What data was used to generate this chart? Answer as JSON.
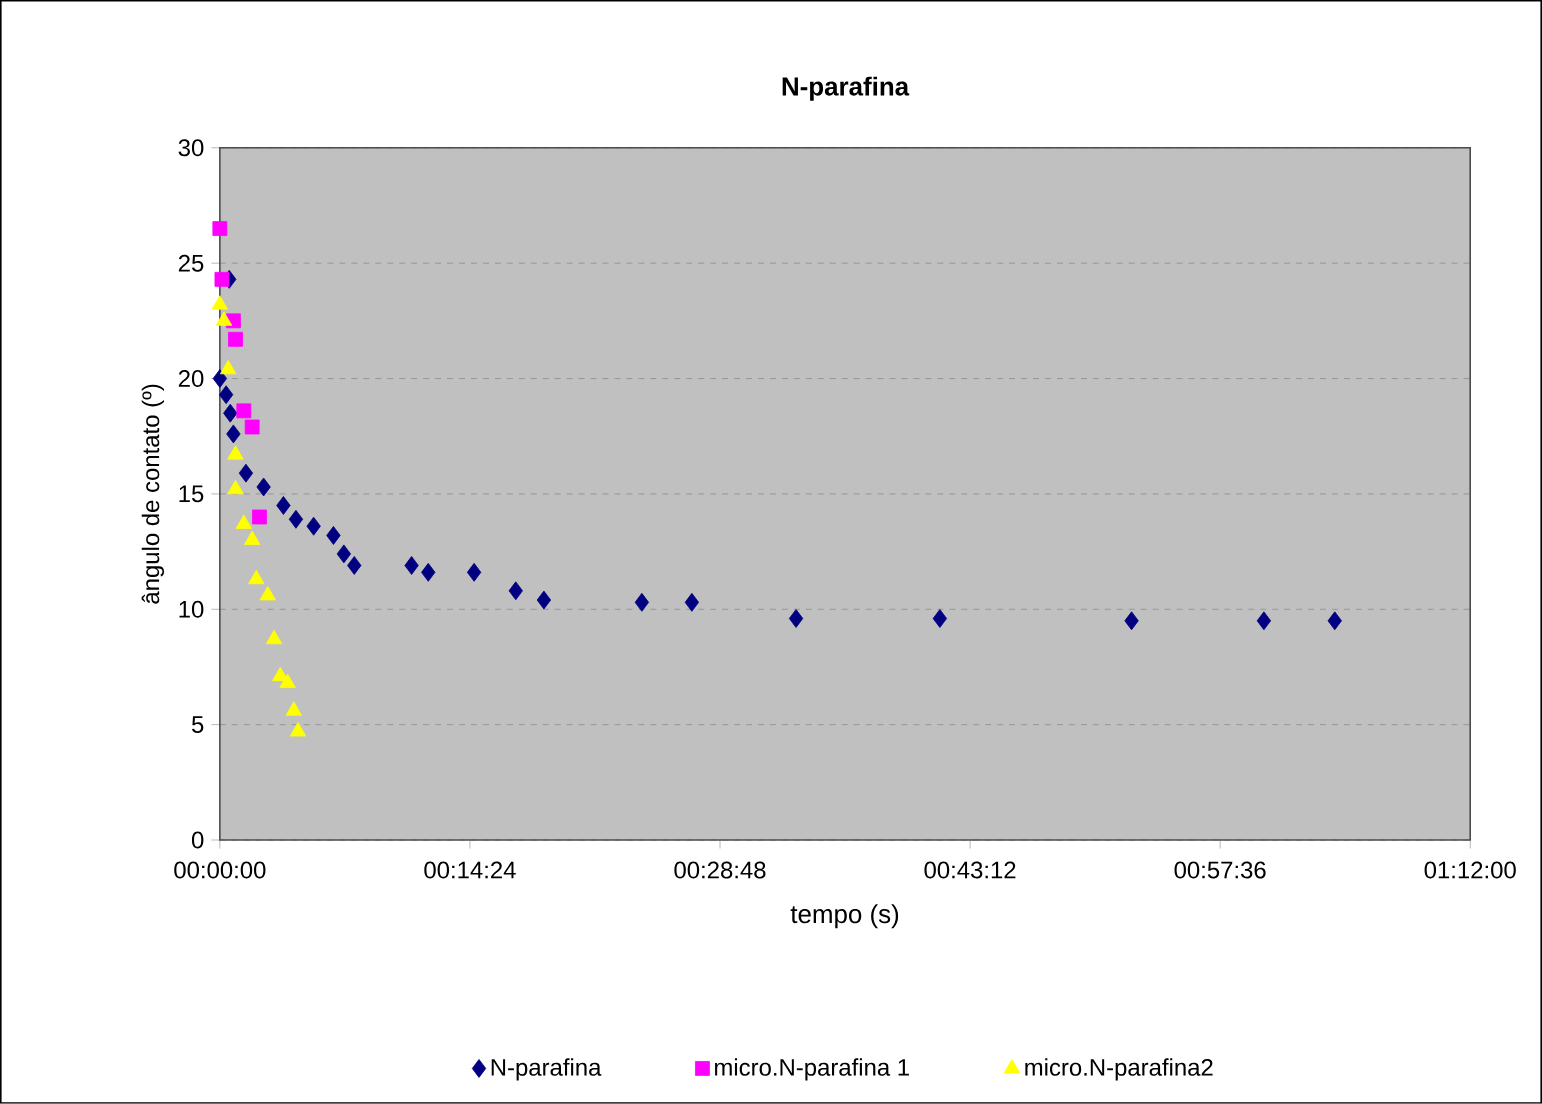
{
  "chart_data": {
    "type": "scatter",
    "title": "N-parafina",
    "xlabel": "tempo (s)",
    "ylabel": "ângulo de contato (º)",
    "xlim": [
      0,
      1.2
    ],
    "ylim": [
      0,
      30
    ],
    "xticks": [
      {
        "value": 0,
        "label": "00:00:00"
      },
      {
        "value": 0.24,
        "label": "00:14:24"
      },
      {
        "value": 0.48,
        "label": "00:28:48"
      },
      {
        "value": 0.72,
        "label": "00:43:12"
      },
      {
        "value": 0.96,
        "label": "00:57:36"
      },
      {
        "value": 1.2,
        "label": "01:12:00"
      }
    ],
    "yticks": [
      0,
      5,
      10,
      15,
      20,
      25,
      30
    ],
    "grid": "y",
    "legend": "bottom",
    "series": [
      {
        "name": "N-parafina",
        "color": "#000080",
        "marker": "diamond",
        "x": [
          0,
          0.009,
          0.006,
          0.01,
          0.013,
          0.025,
          0.042,
          0.061,
          0.073,
          0.09,
          0.109,
          0.119,
          0.129,
          0.184,
          0.2,
          0.244,
          0.284,
          0.311,
          0.405,
          0.453,
          0.553,
          0.691,
          0.875,
          1.002,
          1.07
        ],
        "values": [
          20,
          24.3,
          19.3,
          18.5,
          17.6,
          15.9,
          15.3,
          14.5,
          13.9,
          13.6,
          13.2,
          12.4,
          11.9,
          11.9,
          11.6,
          11.6,
          10.8,
          10.4,
          10.3,
          10.3,
          9.6,
          9.6,
          9.5,
          9.5,
          9.5
        ]
      },
      {
        "name": "micro.N-parafina 1",
        "color": "#ff00ff",
        "marker": "square",
        "x": [
          0,
          0.002,
          0.013,
          0.015,
          0.023,
          0.031,
          0.038
        ],
        "values": [
          26.5,
          24.3,
          22.5,
          21.7,
          18.6,
          17.9,
          14.0
        ]
      },
      {
        "name": "micro.N-parafina2",
        "color": "#ffff00",
        "marker": "triangle",
        "x": [
          0,
          0.004,
          0.008,
          0.015,
          0.015,
          0.023,
          0.031,
          0.035,
          0.046,
          0.052,
          0.058,
          0.065,
          0.071,
          0.075
        ],
        "values": [
          23.2,
          22.5,
          20.4,
          16.7,
          15.2,
          13.7,
          13.0,
          11.3,
          10.6,
          8.7,
          7.1,
          6.8,
          5.6,
          4.7
        ]
      }
    ]
  }
}
